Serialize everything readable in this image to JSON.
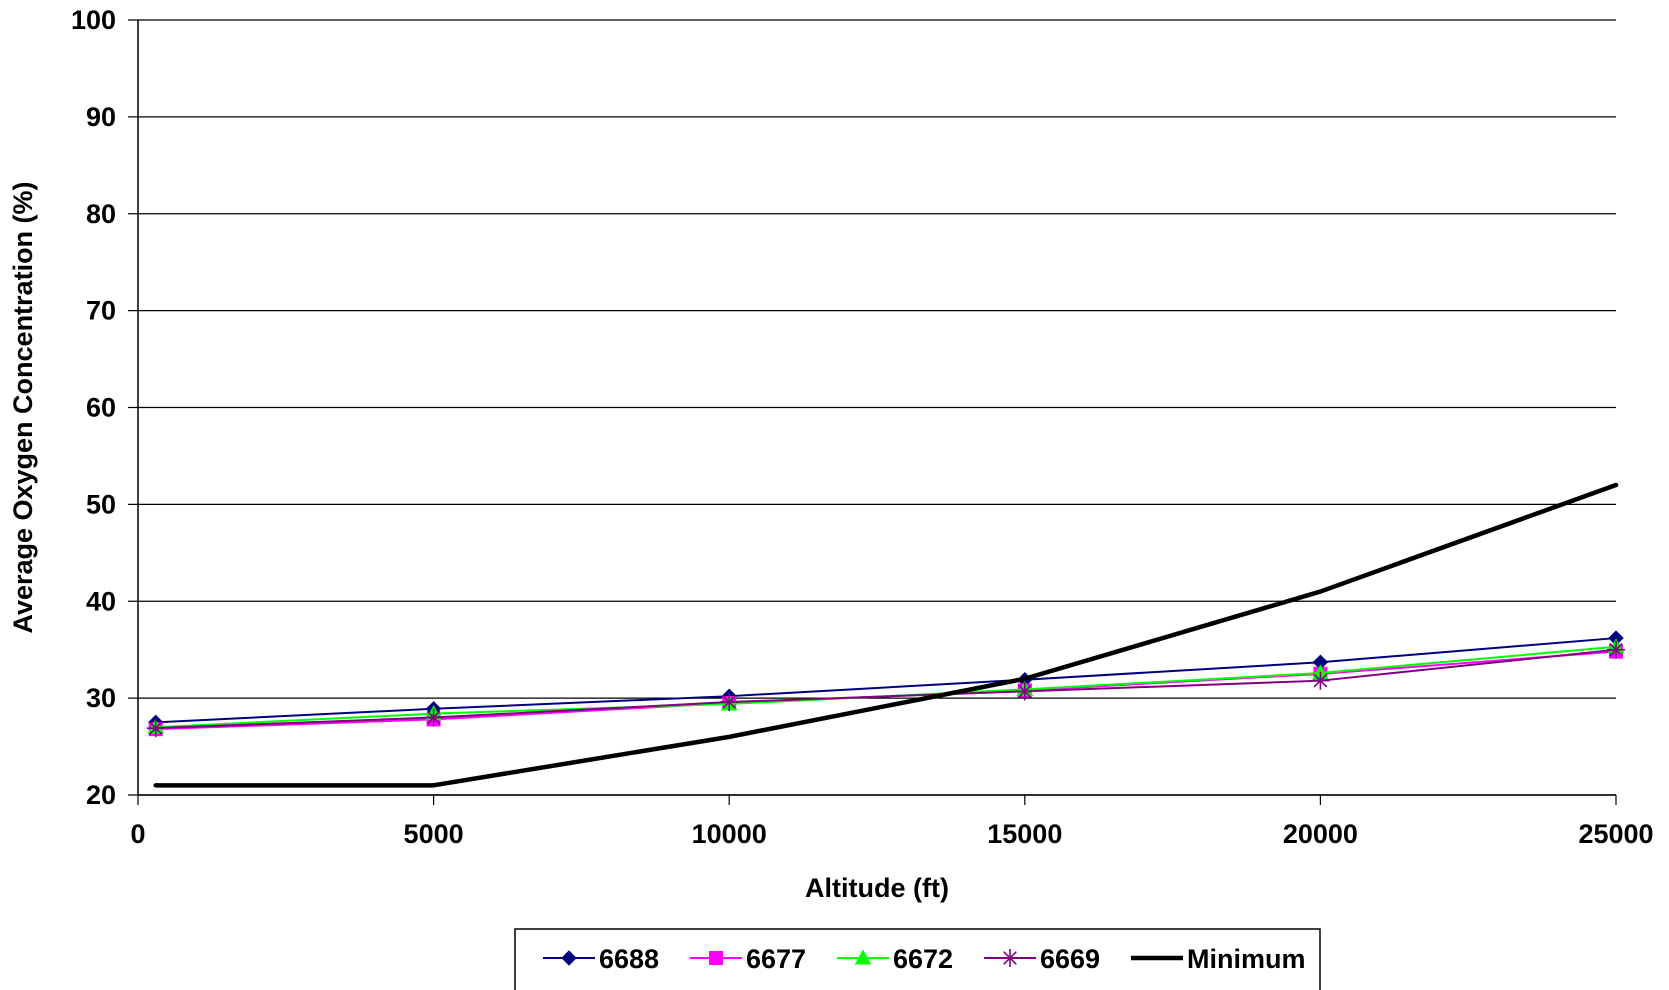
{
  "chart_data": {
    "type": "line",
    "xlabel": "Altitude (ft)",
    "ylabel": "Average Oxygen Concentration (%)",
    "xlim": [
      0,
      25000
    ],
    "ylim": [
      20,
      100
    ],
    "x_ticks": [
      "0",
      "5000",
      "10000",
      "15000",
      "20000",
      "25000"
    ],
    "y_ticks": [
      "20",
      "30",
      "40",
      "50",
      "60",
      "70",
      "80",
      "90",
      "100"
    ],
    "grid": "horizontal",
    "legend_position": "bottom",
    "series": [
      {
        "name": "6688",
        "color": "#000080",
        "marker": "diamond",
        "x": [
          300,
          5000,
          10000,
          15000,
          20000,
          25000
        ],
        "y": [
          27.5,
          28.9,
          30.2,
          31.9,
          33.7,
          36.2
        ]
      },
      {
        "name": "6677",
        "color": "#ff00ff",
        "marker": "square",
        "x": [
          300,
          5000,
          10000,
          15000,
          20000,
          25000
        ],
        "y": [
          26.8,
          27.8,
          29.5,
          30.8,
          32.5,
          34.8
        ]
      },
      {
        "name": "6672",
        "color": "#00ff00",
        "marker": "triangle",
        "x": [
          300,
          5000,
          10000,
          15000,
          20000,
          25000
        ],
        "y": [
          27.0,
          28.4,
          29.4,
          30.9,
          32.6,
          35.3
        ]
      },
      {
        "name": "6669",
        "color": "#800080",
        "marker": "asterisk",
        "x": [
          300,
          5000,
          10000,
          15000,
          20000,
          25000
        ],
        "y": [
          26.9,
          28.0,
          29.6,
          30.7,
          31.8,
          35.0
        ]
      },
      {
        "name": "Minimum",
        "color": "#000000",
        "marker": "none",
        "x": [
          300,
          5000,
          10000,
          15000,
          20000,
          25000
        ],
        "y": [
          21.0,
          21.0,
          26.0,
          32.0,
          41.0,
          52.0
        ]
      }
    ]
  }
}
